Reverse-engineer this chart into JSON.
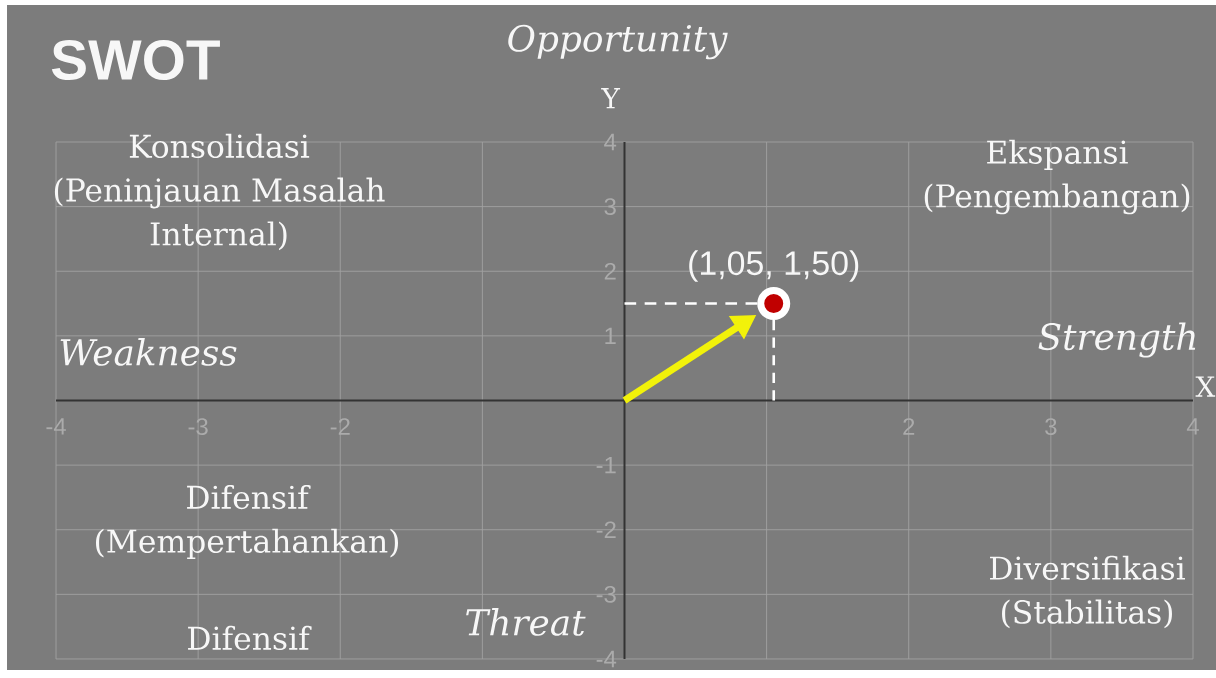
{
  "chart_data": {
    "type": "scatter",
    "title": "SWOT",
    "xlabel": "X",
    "ylabel": "Y",
    "annotations": [
      "Opportunity",
      "Strength",
      "Weakness",
      "Threat",
      "Konsolidasi (Peninjauan Masalah Internal)",
      "Ekspansi (Pengembangan)",
      "Difensif (Mempertahankan)",
      "Diversifikasi (Stabilitas)",
      "Difensif"
    ],
    "x": [
      1.05
    ],
    "series": [
      {
        "values": [
          1.5
        ],
        "color": "#c00000",
        "value_labels": [
          "(1,05, 1,50)"
        ]
      }
    ],
    "marker": "circle",
    "xlim": [
      -4,
      4
    ],
    "ylim": [
      -4,
      4
    ],
    "xticks": [
      -4,
      -3,
      -2,
      {
        "value": -1,
        "label": null
      },
      {
        "value": 0,
        "label": null
      },
      {
        "value": 1,
        "label": null
      },
      2,
      3,
      4
    ],
    "yticks": [
      -4,
      -3,
      -2,
      -1,
      {
        "value": 0,
        "label": null
      },
      1,
      2,
      3,
      4
    ],
    "grid": true
  }
}
